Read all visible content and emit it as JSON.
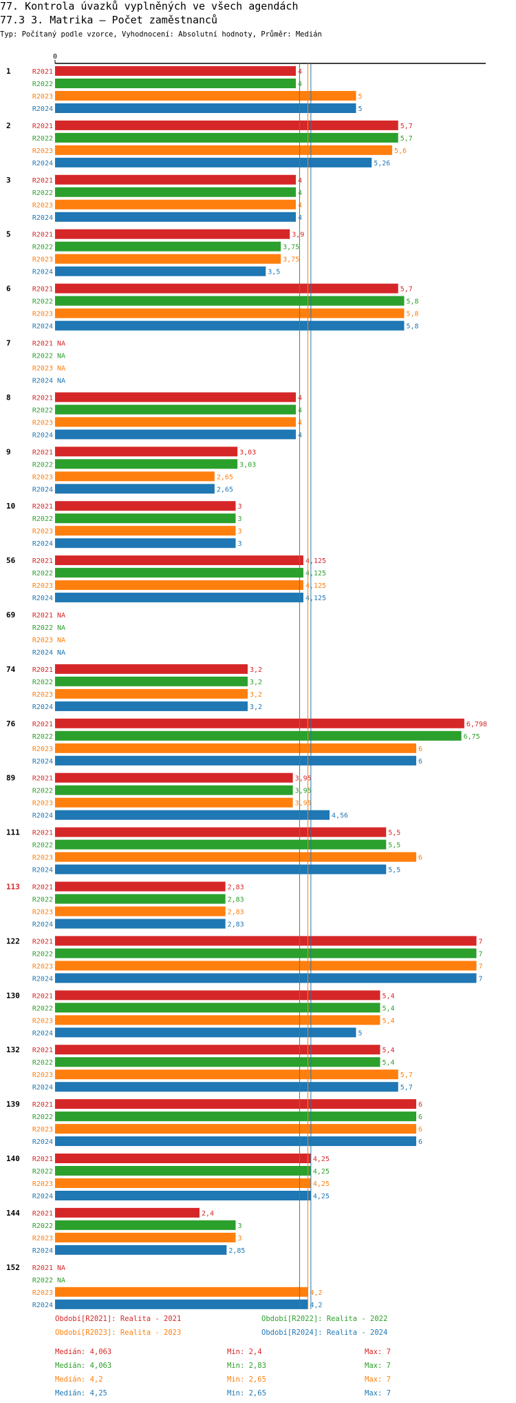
{
  "header": {
    "title_line1": "77. Kontrola úvazků vyplněných ve všech agendách",
    "title_line2": "77.3 3. Matrika – Počet zaměstnanců",
    "subtitle": "Typ: Počítaný podle vzorce, Vyhodnocení: Absolutní hodnoty, Průměr: Medián"
  },
  "colors": {
    "R2021": "#d62728",
    "R2022": "#2ca02c",
    "R2023": "#ff7f0e",
    "R2024": "#1f77b4",
    "highlight_group": "#d62728"
  },
  "chart_data": {
    "type": "bar",
    "orientation": "horizontal",
    "xlim": [
      0,
      7
    ],
    "x_tick_label": "0",
    "series_names": [
      "R2021",
      "R2022",
      "R2023",
      "R2024"
    ],
    "na_label": "NA",
    "groups": [
      {
        "label": "1",
        "highlight": false,
        "values": [
          4,
          4,
          5,
          5
        ],
        "labels": [
          "4",
          "4",
          "5",
          "5"
        ]
      },
      {
        "label": "2",
        "highlight": false,
        "values": [
          5.7,
          5.7,
          5.6,
          5.26
        ],
        "labels": [
          "5,7",
          "5,7",
          "5,6",
          "5,26"
        ]
      },
      {
        "label": "3",
        "highlight": false,
        "values": [
          4,
          4,
          4,
          4
        ],
        "labels": [
          "4",
          "4",
          "4",
          "4"
        ]
      },
      {
        "label": "5",
        "highlight": false,
        "values": [
          3.9,
          3.75,
          3.75,
          3.5
        ],
        "labels": [
          "3,9",
          "3,75",
          "3,75",
          "3,5"
        ]
      },
      {
        "label": "6",
        "highlight": false,
        "values": [
          5.7,
          5.8,
          5.8,
          5.8
        ],
        "labels": [
          "5,7",
          "5,8",
          "5,8",
          "5,8"
        ]
      },
      {
        "label": "7",
        "highlight": false,
        "values": [
          null,
          null,
          null,
          null
        ],
        "labels": [
          "NA",
          "NA",
          "NA",
          "NA"
        ]
      },
      {
        "label": "8",
        "highlight": false,
        "values": [
          4,
          4,
          4,
          4
        ],
        "labels": [
          "4",
          "4",
          "4",
          "4"
        ]
      },
      {
        "label": "9",
        "highlight": false,
        "values": [
          3.03,
          3.03,
          2.65,
          2.65
        ],
        "labels": [
          "3,03",
          "3,03",
          "2,65",
          "2,65"
        ]
      },
      {
        "label": "10",
        "highlight": false,
        "values": [
          3,
          3,
          3,
          3
        ],
        "labels": [
          "3",
          "3",
          "3",
          "3"
        ]
      },
      {
        "label": "56",
        "highlight": false,
        "values": [
          4.125,
          4.125,
          4.125,
          4.125
        ],
        "labels": [
          "4,125",
          "4,125",
          "4,125",
          "4,125"
        ]
      },
      {
        "label": "69",
        "highlight": false,
        "values": [
          null,
          null,
          null,
          null
        ],
        "labels": [
          "NA",
          "NA",
          "NA",
          "NA"
        ]
      },
      {
        "label": "74",
        "highlight": false,
        "values": [
          3.2,
          3.2,
          3.2,
          3.2
        ],
        "labels": [
          "3,2",
          "3,2",
          "3,2",
          "3,2"
        ]
      },
      {
        "label": "76",
        "highlight": false,
        "values": [
          6.798,
          6.75,
          6,
          6
        ],
        "labels": [
          "6,798",
          "6,75",
          "6",
          "6"
        ]
      },
      {
        "label": "89",
        "highlight": false,
        "values": [
          3.95,
          3.95,
          3.95,
          4.56
        ],
        "labels": [
          "3,95",
          "3,95",
          "3,95",
          "4,56"
        ]
      },
      {
        "label": "111",
        "highlight": false,
        "values": [
          5.5,
          5.5,
          6,
          5.5
        ],
        "labels": [
          "5,5",
          "5,5",
          "6",
          "5,5"
        ]
      },
      {
        "label": "113",
        "highlight": true,
        "values": [
          2.83,
          2.83,
          2.83,
          2.83
        ],
        "labels": [
          "2,83",
          "2,83",
          "2,83",
          "2,83"
        ]
      },
      {
        "label": "122",
        "highlight": false,
        "values": [
          7,
          7,
          7,
          7
        ],
        "labels": [
          "7",
          "7",
          "7",
          "7"
        ]
      },
      {
        "label": "130",
        "highlight": false,
        "values": [
          5.4,
          5.4,
          5.4,
          5
        ],
        "labels": [
          "5,4",
          "5,4",
          "5,4",
          "5"
        ]
      },
      {
        "label": "132",
        "highlight": false,
        "values": [
          5.4,
          5.4,
          5.7,
          5.7
        ],
        "labels": [
          "5,4",
          "5,4",
          "5,7",
          "5,7"
        ]
      },
      {
        "label": "139",
        "highlight": false,
        "values": [
          6,
          6,
          6,
          6
        ],
        "labels": [
          "6",
          "6",
          "6",
          "6"
        ]
      },
      {
        "label": "140",
        "highlight": false,
        "values": [
          4.25,
          4.25,
          4.25,
          4.25
        ],
        "labels": [
          "4,25",
          "4,25",
          "4,25",
          "4,25"
        ]
      },
      {
        "label": "144",
        "highlight": false,
        "values": [
          2.4,
          3,
          3,
          2.85
        ],
        "labels": [
          "2,4",
          "3",
          "3",
          "2,85"
        ]
      },
      {
        "label": "152",
        "highlight": false,
        "values": [
          null,
          null,
          4.2,
          4.2
        ],
        "labels": [
          "NA",
          "NA",
          "4,2",
          "4,2"
        ]
      }
    ],
    "reference_lines": [
      {
        "series": "R2021",
        "median": 4.063
      },
      {
        "series": "R2022",
        "median": 4.063
      },
      {
        "series": "R2023",
        "median": 4.2
      },
      {
        "series": "R2024",
        "median": 4.25
      }
    ]
  },
  "legend": [
    {
      "series": "R2021",
      "text": "Období[R2021]: Realita - 2021"
    },
    {
      "series": "R2022",
      "text": "Období[R2022]: Realita - 2022"
    },
    {
      "series": "R2023",
      "text": "Období[R2023]: Realita - 2023"
    },
    {
      "series": "R2024",
      "text": "Období[R2024]: Realita - 2024"
    }
  ],
  "stats": [
    {
      "series": "R2021",
      "median": "Medián: 4,063",
      "min": "Min: 2,4",
      "max": "Max: 7"
    },
    {
      "series": "R2022",
      "median": "Medián: 4,063",
      "min": "Min: 2,83",
      "max": "Max: 7"
    },
    {
      "series": "R2023",
      "median": "Medián: 4,2",
      "min": "Min: 2,65",
      "max": "Max: 7"
    },
    {
      "series": "R2024",
      "median": "Medián: 4,25",
      "min": "Min: 2,65",
      "max": "Max: 7"
    }
  ]
}
